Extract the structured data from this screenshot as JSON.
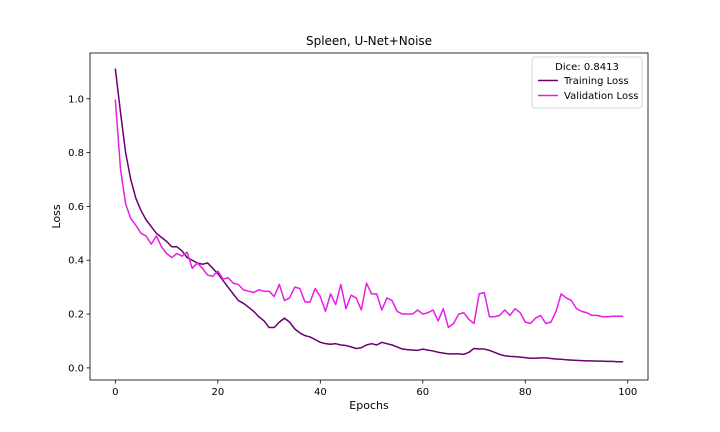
{
  "chart_data": {
    "type": "line",
    "title": "Spleen, U-Net+Noise",
    "xlabel": "Epochs",
    "ylabel": "Loss",
    "xlim": [
      -4.95,
      103.95
    ],
    "ylim": [
      -0.045,
      1.17
    ],
    "xticks": [
      0,
      20,
      40,
      60,
      80,
      100
    ],
    "yticks": [
      0.0,
      0.2,
      0.4,
      0.6,
      0.8,
      1.0
    ],
    "xtick_labels": [
      "0",
      "20",
      "40",
      "60",
      "80",
      "100"
    ],
    "ytick_labels": [
      "0.0",
      "0.2",
      "0.4",
      "0.6",
      "0.8",
      "1.0"
    ],
    "grid": false,
    "legend": {
      "title": "Dice: 0.8413",
      "placement": "top-right"
    },
    "series": [
      {
        "name": "Training Loss",
        "color": "#6a0070",
        "x": [
          0,
          1,
          2,
          3,
          4,
          5,
          6,
          7,
          8,
          9,
          10,
          11,
          12,
          13,
          14,
          15,
          16,
          17,
          18,
          19,
          20,
          21,
          22,
          23,
          24,
          25,
          26,
          27,
          28,
          29,
          30,
          31,
          32,
          33,
          34,
          35,
          36,
          37,
          38,
          39,
          40,
          41,
          42,
          43,
          44,
          45,
          46,
          47,
          48,
          49,
          50,
          51,
          52,
          53,
          54,
          55,
          56,
          57,
          58,
          59,
          60,
          61,
          62,
          63,
          64,
          65,
          66,
          67,
          68,
          69,
          70,
          71,
          72,
          73,
          74,
          75,
          76,
          77,
          78,
          79,
          80,
          81,
          82,
          83,
          84,
          85,
          86,
          87,
          88,
          89,
          90,
          91,
          92,
          93,
          94,
          95,
          96,
          97,
          98,
          99
        ],
        "values": [
          1.11,
          0.95,
          0.8,
          0.7,
          0.63,
          0.585,
          0.55,
          0.525,
          0.5,
          0.485,
          0.47,
          0.45,
          0.45,
          0.435,
          0.41,
          0.4,
          0.39,
          0.385,
          0.39,
          0.37,
          0.35,
          0.325,
          0.3,
          0.275,
          0.25,
          0.24,
          0.225,
          0.21,
          0.19,
          0.175,
          0.15,
          0.15,
          0.17,
          0.185,
          0.17,
          0.145,
          0.13,
          0.12,
          0.115,
          0.105,
          0.095,
          0.09,
          0.088,
          0.09,
          0.085,
          0.083,
          0.078,
          0.072,
          0.075,
          0.085,
          0.09,
          0.085,
          0.095,
          0.09,
          0.085,
          0.078,
          0.07,
          0.068,
          0.066,
          0.065,
          0.07,
          0.066,
          0.063,
          0.058,
          0.055,
          0.052,
          0.052,
          0.052,
          0.05,
          0.058,
          0.072,
          0.07,
          0.07,
          0.065,
          0.058,
          0.05,
          0.045,
          0.043,
          0.042,
          0.04,
          0.038,
          0.036,
          0.036,
          0.037,
          0.037,
          0.035,
          0.033,
          0.032,
          0.03,
          0.029,
          0.028,
          0.027,
          0.026,
          0.026,
          0.025,
          0.025,
          0.024,
          0.024,
          0.023,
          0.023
        ]
      },
      {
        "name": "Validation Loss",
        "color": "#e61ee6",
        "x": [
          0,
          1,
          2,
          3,
          4,
          5,
          6,
          7,
          8,
          9,
          10,
          11,
          12,
          13,
          14,
          15,
          16,
          17,
          18,
          19,
          20,
          21,
          22,
          23,
          24,
          25,
          26,
          27,
          28,
          29,
          30,
          31,
          32,
          33,
          34,
          35,
          36,
          37,
          38,
          39,
          40,
          41,
          42,
          43,
          44,
          45,
          46,
          47,
          48,
          49,
          50,
          51,
          52,
          53,
          54,
          55,
          56,
          57,
          58,
          59,
          60,
          61,
          62,
          63,
          64,
          65,
          66,
          67,
          68,
          69,
          70,
          71,
          72,
          73,
          74,
          75,
          76,
          77,
          78,
          79,
          80,
          81,
          82,
          83,
          84,
          85,
          86,
          87,
          88,
          89,
          90,
          91,
          92,
          93,
          94,
          95,
          96,
          97,
          98,
          99
        ],
        "values": [
          0.995,
          0.74,
          0.61,
          0.555,
          0.53,
          0.5,
          0.49,
          0.46,
          0.49,
          0.45,
          0.425,
          0.41,
          0.425,
          0.415,
          0.43,
          0.37,
          0.39,
          0.37,
          0.345,
          0.34,
          0.36,
          0.33,
          0.335,
          0.315,
          0.31,
          0.29,
          0.285,
          0.28,
          0.29,
          0.285,
          0.285,
          0.265,
          0.31,
          0.25,
          0.26,
          0.3,
          0.295,
          0.245,
          0.245,
          0.295,
          0.265,
          0.21,
          0.275,
          0.235,
          0.31,
          0.22,
          0.27,
          0.26,
          0.215,
          0.315,
          0.275,
          0.275,
          0.215,
          0.26,
          0.25,
          0.21,
          0.2,
          0.2,
          0.2,
          0.215,
          0.2,
          0.205,
          0.215,
          0.175,
          0.22,
          0.15,
          0.165,
          0.2,
          0.205,
          0.18,
          0.165,
          0.275,
          0.28,
          0.19,
          0.19,
          0.195,
          0.215,
          0.195,
          0.22,
          0.205,
          0.17,
          0.165,
          0.185,
          0.195,
          0.165,
          0.17,
          0.21,
          0.275,
          0.26,
          0.25,
          0.22,
          0.21,
          0.205,
          0.195,
          0.195,
          0.19,
          0.19,
          0.192,
          0.192,
          0.192
        ]
      }
    ]
  }
}
